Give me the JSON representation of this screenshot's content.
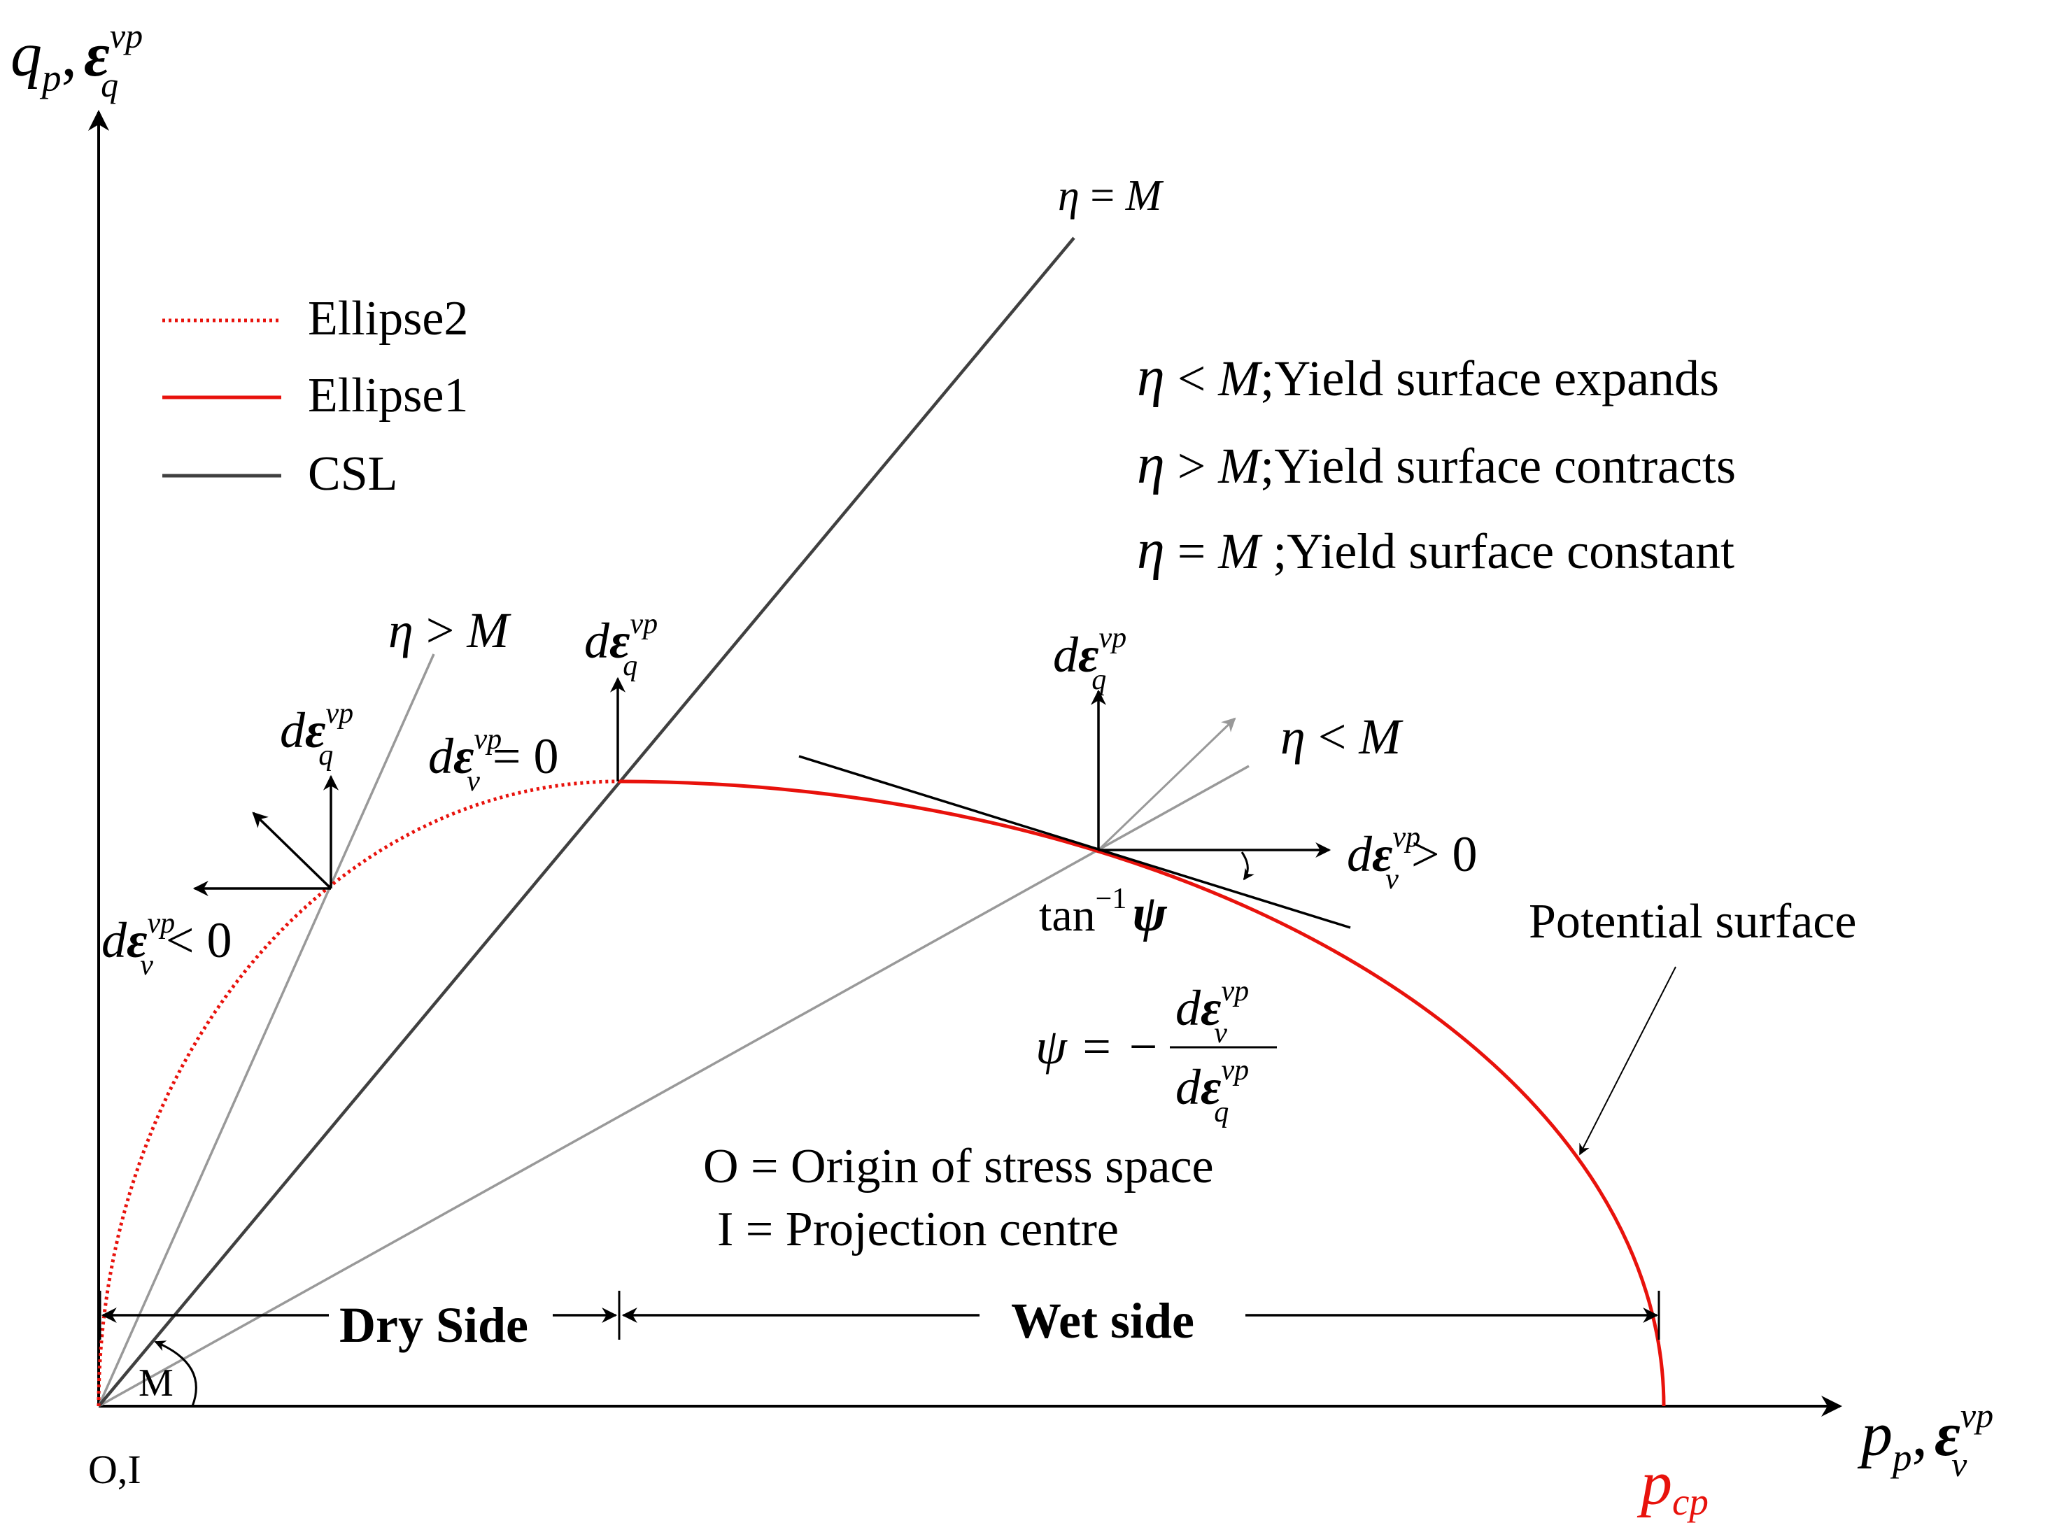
{
  "axes": {
    "y_label": {
      "main": "q",
      "main_sub": "p",
      "sep": ",",
      "sym": "ε",
      "sup": "vp",
      "sub": "q"
    },
    "x_label": {
      "main": "p",
      "main_sub": "p",
      "sep": ",",
      "sym": "ε",
      "sup": "vp",
      "sub": "v"
    },
    "origin_label": "O,I",
    "pcp_label": {
      "main": "p",
      "sub": "cp"
    }
  },
  "legend": [
    {
      "label": "Ellipse2",
      "style": "dotted",
      "color": "#e8120c"
    },
    {
      "label": "Ellipse1",
      "style": "solid",
      "color": "#e8120c"
    },
    {
      "label": "CSL",
      "style": "solid",
      "color": "#404040"
    }
  ],
  "lines": {
    "csl_label": {
      "eta": "η",
      "rel": " = ",
      "m": "M"
    },
    "left_label": {
      "eta": "η",
      "rel": " > ",
      "m": "M"
    },
    "right_label": {
      "eta": "η",
      "rel": " < ",
      "m": "M"
    }
  },
  "rules": [
    {
      "eta": "η",
      "rel": " < ",
      "m": "M",
      "text": ";Yield surface expands"
    },
    {
      "eta": "η",
      "rel": " > ",
      "m": "M",
      "text": ";Yield surface contracts"
    },
    {
      "eta": "η",
      "rel": " = ",
      "m": "M",
      "text": " ;Yield surface constant"
    }
  ],
  "flow_labels": {
    "deq_top": {
      "d": "d",
      "sym": "ε",
      "sup": "vp",
      "sub": "q"
    },
    "deq_left": {
      "d": "d",
      "sym": "ε",
      "sup": "vp",
      "sub": "q"
    },
    "deq_right": {
      "d": "d",
      "sym": "ε",
      "sup": "vp",
      "sub": "q"
    },
    "dev_zero": {
      "d": "d",
      "sym": "ε",
      "sup": "vp",
      "sub": "v",
      "rest": " = 0"
    },
    "dev_neg": {
      "d": "d",
      "sym": "ε",
      "sup": "vp",
      "sub": "v",
      "rest": " < 0"
    },
    "dev_pos": {
      "d": "d",
      "sym": "ε",
      "sup": "vp",
      "sub": "v",
      "rest": " > 0"
    }
  },
  "tan_label": {
    "fn": "tan",
    "exp": "−1",
    "psi": "ψ"
  },
  "psi_formula": {
    "lhs": "ψ = −",
    "num": {
      "d": "d",
      "sym": "ε",
      "sup": "vp",
      "sub": "v"
    },
    "den": {
      "d": "d",
      "sym": "ε",
      "sup": "vp",
      "sub": "q"
    }
  },
  "potential_surface_label": "Potential surface",
  "notes": [
    "O = Origin of stress space",
    "I = Projection centre"
  ],
  "sides": {
    "dry": "Dry Side",
    "wet": "Wet side"
  },
  "angle_label": "M",
  "colors": {
    "red": "#e8120c",
    "csl": "#404040",
    "gray": "#999999",
    "black": "#000000"
  }
}
